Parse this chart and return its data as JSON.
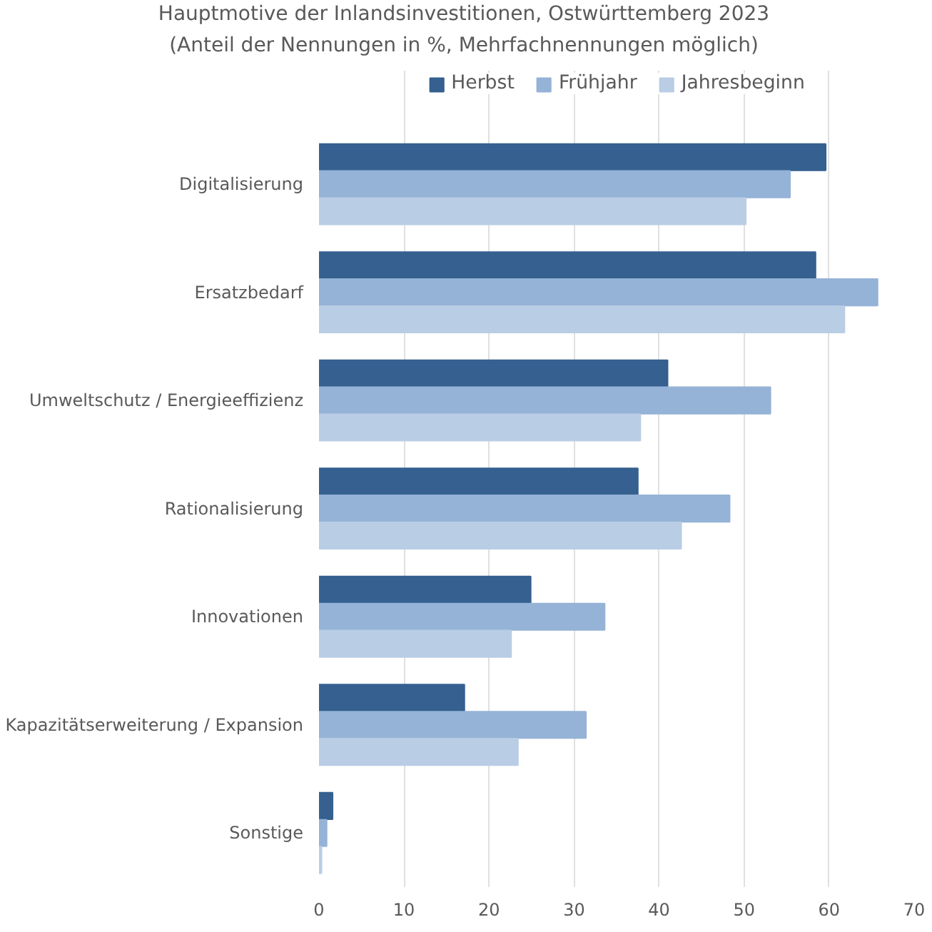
{
  "chart_data": {
    "type": "bar",
    "orientation": "horizontal",
    "title": "Hauptmotive der Inlandsinvestitionen, Ostwürttemberg 2023",
    "subtitle": "(Anteil der Nennungen in %, Mehrfachnennungen möglich)",
    "categories": [
      "Digitalisierung",
      "Ersatzbedarf",
      "Umweltschutz / Energieeffizienz",
      "Rationalisierung",
      "Innovationen",
      "Kapazitätserweiterung / Expansion",
      "Sonstige"
    ],
    "series": [
      {
        "name": "Herbst",
        "color": "#35608f",
        "values": [
          59.6,
          58.4,
          41.0,
          37.5,
          24.9,
          17.1,
          1.6
        ]
      },
      {
        "name": "Frühjahr",
        "color": "#95b3d7",
        "values": [
          55.4,
          65.7,
          53.1,
          48.3,
          33.6,
          31.4,
          0.9
        ]
      },
      {
        "name": "Jahresbeginn",
        "color": "#b9cde5",
        "values": [
          50.2,
          61.8,
          37.8,
          42.6,
          22.6,
          23.4,
          0.3
        ]
      }
    ],
    "xlim": [
      0,
      70
    ],
    "xticks": [
      0,
      10,
      20,
      30,
      40,
      50,
      60,
      70
    ],
    "grid": "x",
    "legend": "top"
  }
}
